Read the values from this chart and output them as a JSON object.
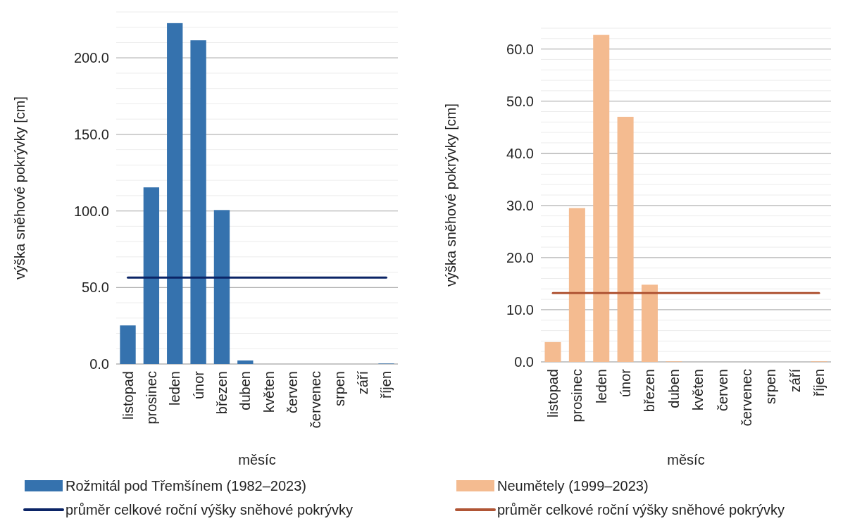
{
  "chart_data": [
    {
      "type": "bar",
      "xlabel": "měsíc",
      "ylabel": "výška sněhové pokrývky [cm]",
      "categories": [
        "listopad",
        "prosinec",
        "leden",
        "únor",
        "březen",
        "duben",
        "květen",
        "červen",
        "červenec",
        "srpen",
        "září",
        "říjen"
      ],
      "series": [
        {
          "name": "Rožmitál pod Třemšínem (1982–2023)",
          "color": "#3572ae",
          "values": [
            25.2,
            115.4,
            222.7,
            211.5,
            100.6,
            2.3,
            0,
            0,
            0,
            0,
            0,
            0.3
          ]
        },
        {
          "name": "průměr celkové roční výšky sněhové pokrývky",
          "type": "line",
          "color": "#0b2466",
          "values": [
            56.5,
            56.5,
            56.5,
            56.5,
            56.5,
            56.5,
            56.5,
            56.5,
            56.5,
            56.5,
            56.5,
            56.5
          ]
        }
      ],
      "ylim": [
        0,
        230
      ],
      "yticks": [
        {
          "value": 0,
          "label": "0.0"
        },
        {
          "value": 10,
          "label": null
        },
        {
          "value": 20,
          "label": null
        },
        {
          "value": 30,
          "label": null
        },
        {
          "value": 40,
          "label": null
        },
        {
          "value": 50,
          "label": "50.0"
        },
        {
          "value": 60,
          "label": null
        },
        {
          "value": 70,
          "label": null
        },
        {
          "value": 80,
          "label": null
        },
        {
          "value": 90,
          "label": null
        },
        {
          "value": 100,
          "label": "100.0"
        },
        {
          "value": 110,
          "label": null
        },
        {
          "value": 120,
          "label": null
        },
        {
          "value": 130,
          "label": null
        },
        {
          "value": 140,
          "label": null
        },
        {
          "value": 150,
          "label": "150.0"
        },
        {
          "value": 160,
          "label": null
        },
        {
          "value": 170,
          "label": null
        },
        {
          "value": 180,
          "label": null
        },
        {
          "value": 190,
          "label": null
        },
        {
          "value": 200,
          "label": "200.0"
        },
        {
          "value": 210,
          "label": null
        },
        {
          "value": 220,
          "label": null
        },
        {
          "value": 230,
          "label": null
        }
      ],
      "grid": "y",
      "legend": "bottom"
    },
    {
      "type": "bar",
      "xlabel": "měsíc",
      "ylabel": "výška sněhové pokrývky [cm]",
      "categories": [
        "listopad",
        "prosinec",
        "leden",
        "únor",
        "březen",
        "duben",
        "květen",
        "červen",
        "červenec",
        "srpen",
        "září",
        "říjen"
      ],
      "series": [
        {
          "name": "Neumětely (1999–2023)",
          "color": "#f4bb90",
          "values": [
            3.8,
            29.5,
            62.7,
            47.0,
            14.8,
            0.1,
            0,
            0,
            0,
            0,
            0,
            0.1
          ]
        },
        {
          "name": "průměr celkové roční výšky sněhové pokrývky",
          "type": "line",
          "color": "#b05535",
          "values": [
            13.2,
            13.2,
            13.2,
            13.2,
            13.2,
            13.2,
            13.2,
            13.2,
            13.2,
            13.2,
            13.2,
            13.2
          ]
        }
      ],
      "ylim": [
        0,
        64
      ],
      "yticks": [
        {
          "value": 0,
          "label": "0.0"
        },
        {
          "value": 2,
          "label": null
        },
        {
          "value": 4,
          "label": null
        },
        {
          "value": 6,
          "label": null
        },
        {
          "value": 8,
          "label": null
        },
        {
          "value": 10,
          "label": "10.0"
        },
        {
          "value": 12,
          "label": null
        },
        {
          "value": 14,
          "label": null
        },
        {
          "value": 16,
          "label": null
        },
        {
          "value": 18,
          "label": null
        },
        {
          "value": 20,
          "label": "20.0"
        },
        {
          "value": 22,
          "label": null
        },
        {
          "value": 24,
          "label": null
        },
        {
          "value": 26,
          "label": null
        },
        {
          "value": 28,
          "label": null
        },
        {
          "value": 30,
          "label": "30.0"
        },
        {
          "value": 32,
          "label": null
        },
        {
          "value": 34,
          "label": null
        },
        {
          "value": 36,
          "label": null
        },
        {
          "value": 38,
          "label": null
        },
        {
          "value": 40,
          "label": "40.0"
        },
        {
          "value": 42,
          "label": null
        },
        {
          "value": 44,
          "label": null
        },
        {
          "value": 46,
          "label": null
        },
        {
          "value": 48,
          "label": null
        },
        {
          "value": 50,
          "label": "50.0"
        },
        {
          "value": 52,
          "label": null
        },
        {
          "value": 54,
          "label": null
        },
        {
          "value": 56,
          "label": null
        },
        {
          "value": 58,
          "label": null
        },
        {
          "value": 60,
          "label": "60.0"
        },
        {
          "value": 62,
          "label": null
        },
        {
          "value": 64,
          "label": null
        }
      ],
      "grid": "y",
      "legend": "bottom"
    }
  ]
}
